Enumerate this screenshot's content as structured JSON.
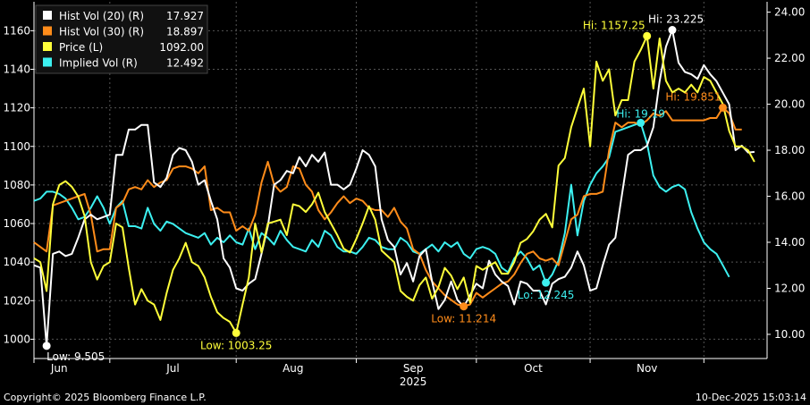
{
  "chart_data": {
    "type": "line",
    "left_axis": {
      "ticks": [
        1000,
        1020,
        1040,
        1060,
        1080,
        1100,
        1120,
        1140,
        1160
      ],
      "range": [
        990,
        1175
      ]
    },
    "right_axis": {
      "ticks": [
        "10.00",
        "12.00",
        "14.00",
        "16.00",
        "18.00",
        "20.00",
        "22.00",
        "24.00"
      ],
      "range": [
        8.95,
        24.45
      ]
    },
    "x_labels": [
      "Jun",
      "Jul",
      "Aug",
      "Sep",
      "Oct",
      "Nov"
    ],
    "year_label": "2025",
    "x_range": [
      0,
      116
    ],
    "x_label_positions": [
      4,
      22,
      41,
      60,
      79,
      97
    ],
    "x_tick_positions": [
      0,
      12,
      32,
      51,
      70,
      88,
      106
    ],
    "legend": [
      {
        "key": "hv20",
        "label": "Hist Vol (20) (R)",
        "value": "17.927",
        "color": "#ffffff"
      },
      {
        "key": "hv30",
        "label": "Hist Vol (30) (R)",
        "value": "18.897",
        "color": "#ff8c1a"
      },
      {
        "key": "price",
        "label": "Price (L)",
        "value": "1092.00",
        "color": "#ffff3a"
      },
      {
        "key": "iv",
        "label": "Implied Vol (R)",
        "value": "12.492",
        "color": "#3cf0f0"
      }
    ],
    "series": [
      {
        "key": "hv20",
        "name": "Hist Vol (20)",
        "axis": "right",
        "color": "#ffffff",
        "values": [
          13.0,
          12.9,
          9.5,
          13.5,
          13.6,
          13.4,
          13.5,
          14.2,
          15.0,
          15.2,
          15.0,
          15.1,
          15.2,
          17.8,
          17.8,
          18.9,
          18.9,
          19.1,
          19.1,
          16.6,
          16.4,
          16.8,
          17.8,
          18.1,
          18.0,
          17.5,
          16.5,
          16.7,
          15.8,
          15.0,
          13.3,
          12.9,
          12.0,
          11.9,
          12.2,
          12.4,
          13.5,
          14.7,
          16.5,
          16.7,
          17.1,
          17.0,
          17.7,
          17.3,
          17.8,
          17.5,
          17.9,
          16.5,
          16.5,
          16.3,
          16.5,
          17.2,
          18.0,
          17.8,
          17.3,
          15.0,
          14.1,
          13.8,
          12.6,
          13.1,
          12.3,
          13.4,
          13.7,
          12.3,
          11.1,
          11.5,
          12.3,
          11.5,
          11.2,
          11.7,
          12.2,
          12.0,
          13.2,
          12.6,
          12.3,
          12.1,
          11.3,
          12.3,
          12.2,
          11.9,
          11.9,
          11.3,
          12.2,
          12.4,
          12.5,
          12.9,
          13.6,
          13.0,
          11.9,
          12.0,
          13.0,
          13.9,
          14.2,
          16.0,
          17.8,
          18.0,
          18.0,
          18.2,
          19.0,
          21.0,
          22.5,
          23.225,
          21.8,
          21.4,
          21.3,
          21.1,
          21.7,
          21.3,
          21.0,
          20.5,
          20.0,
          18.0,
          18.2,
          17.9,
          17.927
        ]
      },
      {
        "key": "hv30",
        "name": "Hist Vol (30)",
        "axis": "right",
        "color": "#ff8c1a",
        "values": [
          14.0,
          13.8,
          13.6,
          15.6,
          15.7,
          15.8,
          15.9,
          16.0,
          16.1,
          15.2,
          13.6,
          13.7,
          13.7,
          15.5,
          15.7,
          16.3,
          16.4,
          16.3,
          16.7,
          16.4,
          16.6,
          16.7,
          17.2,
          17.3,
          17.3,
          17.2,
          17.0,
          17.3,
          15.4,
          15.5,
          15.3,
          15.3,
          14.5,
          14.7,
          14.5,
          15.2,
          16.6,
          17.5,
          16.5,
          16.2,
          16.4,
          17.3,
          17.2,
          16.5,
          16.2,
          15.4,
          15.0,
          15.3,
          15.7,
          16.0,
          15.7,
          15.9,
          15.8,
          15.5,
          15.4,
          15.4,
          15.1,
          15.5,
          14.9,
          14.6,
          13.7,
          13.5,
          12.8,
          12.3,
          12.0,
          11.7,
          11.5,
          11.3,
          11.214,
          11.3,
          11.8,
          11.6,
          11.8,
          12.0,
          12.2,
          12.3,
          12.6,
          13.1,
          13.5,
          13.6,
          13.3,
          13.2,
          13.3,
          13.0,
          14.0,
          15.0,
          15.2,
          16.0,
          16.1,
          16.1,
          16.2,
          18.0,
          19.2,
          19.0,
          19.2,
          19.2,
          19.1,
          19.3,
          19.6,
          19.5,
          19.7,
          19.3,
          19.3,
          19.3,
          19.3,
          19.3,
          19.3,
          19.4,
          19.4,
          19.851,
          19.6,
          18.9,
          18.9
        ]
      },
      {
        "key": "price",
        "name": "Price",
        "axis": "left",
        "color": "#ffff3a",
        "values": [
          1042,
          1040,
          1025,
          1070,
          1080,
          1082,
          1079,
          1074,
          1064,
          1040,
          1031,
          1038,
          1040,
          1060,
          1058,
          1037,
          1018,
          1026,
          1020,
          1018,
          1010,
          1024,
          1036,
          1042,
          1050,
          1040,
          1038,
          1032,
          1022,
          1014,
          1011,
          1009,
          1003.25,
          1018,
          1032,
          1060,
          1045,
          1060,
          1061,
          1062,
          1054,
          1070,
          1069,
          1066,
          1070,
          1076,
          1066,
          1060,
          1054,
          1047,
          1045,
          1052,
          1060,
          1069,
          1062,
          1046,
          1043,
          1040,
          1025,
          1022,
          1020,
          1028,
          1032,
          1021,
          1027,
          1037,
          1033,
          1026,
          1032,
          1019,
          1038,
          1036,
          1038,
          1040,
          1034,
          1034,
          1040,
          1050,
          1052,
          1056,
          1062,
          1065,
          1058,
          1090,
          1094,
          1110,
          1120,
          1130,
          1100,
          1144,
          1134,
          1140,
          1116,
          1124,
          1124,
          1144,
          1150,
          1157.25,
          1130,
          1156,
          1134,
          1128,
          1130,
          1128,
          1132,
          1128,
          1136,
          1134,
          1128,
          1122,
          1108,
          1100,
          1100,
          1098,
          1092
        ]
      },
      {
        "key": "iv",
        "name": "Implied Vol",
        "axis": "right",
        "color": "#3cf0f0",
        "values": [
          15.8,
          15.9,
          16.2,
          16.2,
          16.1,
          15.9,
          15.5,
          15.0,
          15.1,
          15.5,
          16.0,
          15.5,
          14.8,
          15.5,
          15.8,
          14.7,
          14.7,
          14.6,
          15.5,
          14.8,
          14.5,
          14.9,
          14.8,
          14.6,
          14.4,
          14.3,
          14.2,
          14.4,
          13.9,
          14.2,
          14.0,
          14.3,
          14.0,
          13.9,
          14.6,
          13.7,
          14.4,
          14.2,
          13.9,
          14.5,
          14.1,
          13.8,
          13.7,
          13.6,
          14.1,
          13.8,
          14.5,
          14.3,
          13.8,
          13.6,
          13.6,
          13.5,
          13.8,
          14.2,
          14.1,
          13.8,
          13.7,
          13.7,
          14.2,
          14.0,
          13.6,
          13.5,
          13.7,
          13.9,
          13.6,
          14.0,
          13.8,
          14.0,
          13.5,
          13.3,
          13.7,
          13.8,
          13.7,
          13.5,
          12.9,
          12.7,
          13.3,
          13.6,
          13.3,
          12.8,
          13.0,
          12.245,
          12.6,
          13.2,
          14.4,
          16.5,
          14.3,
          15.8,
          16.5,
          17.0,
          17.3,
          17.7,
          18.8,
          18.9,
          19.0,
          19.1,
          19.19,
          18.3,
          16.9,
          16.4,
          16.2,
          16.4,
          16.5,
          16.3,
          15.3,
          14.6,
          14.0,
          13.7,
          13.5,
          13.0,
          12.492
        ]
      }
    ],
    "annotations": [
      {
        "series": "hv20",
        "index": 2,
        "text": "Low: 9.505",
        "color": "#ffffff",
        "pos": "below-right"
      },
      {
        "series": "price",
        "index": 32,
        "text": "Low: 1003.25",
        "color": "#ffff3a",
        "pos": "below"
      },
      {
        "series": "hv30",
        "index": 68,
        "text": "Low: 11.214",
        "color": "#ff8c1a",
        "pos": "below"
      },
      {
        "series": "iv",
        "index": 81,
        "text": "Lo: 12.245",
        "color": "#3cf0f0",
        "pos": "below"
      },
      {
        "series": "price",
        "index": 97,
        "text": "Hi: 1157.25",
        "color": "#ffff3a",
        "pos": "left"
      },
      {
        "series": "hv20",
        "index": 101,
        "text": "Hi: 23.225",
        "color": "#ffffff",
        "pos": "right"
      },
      {
        "series": "iv",
        "index": 96,
        "text": "Hi: 19.19",
        "color": "#3cf0f0",
        "pos": "above"
      },
      {
        "series": "hv30",
        "index": 109,
        "text": "Hi: 19.851",
        "color": "#ff8c1a",
        "pos": "left"
      }
    ],
    "grid": true
  },
  "footer": {
    "copyright": "Copyright© 2025 Bloomberg Finance L.P.",
    "timestamp": "10-Dec-2025 15:03:14"
  }
}
